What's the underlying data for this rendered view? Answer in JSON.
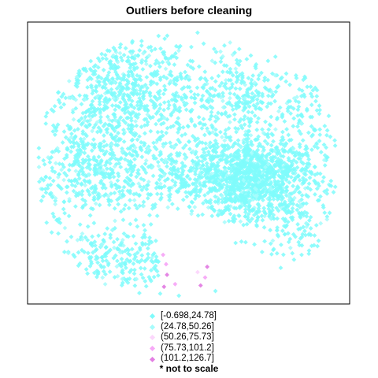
{
  "colors": {
    "background": "#ffffff",
    "frame": "#000000"
  },
  "chart_data": {
    "type": "scatter",
    "title": "Outliers before cleaning",
    "xlabel": "",
    "ylabel": "",
    "grid": false,
    "marker": "diamond",
    "legend_position": "bottom",
    "legend": {
      "note": "* not to scale",
      "entries": [
        {
          "label": "[-0.698,24.78]",
          "color": "#7ffbfb"
        },
        {
          "label": "(24.78,50.26]",
          "color": "#a6fcfc"
        },
        {
          "label": "(50.26,75.73]",
          "color": "#fcd6fc"
        },
        {
          "label": "(75.73,101.2]",
          "color": "#f7a8f7"
        },
        {
          "label": "(101.2,126.7]",
          "color": "#e37fe3"
        }
      ]
    },
    "clusters": [
      {
        "name": "upper-left mass",
        "center": [
          0.28,
          0.75
        ],
        "spread": [
          0.14,
          0.13
        ],
        "count": 900
      },
      {
        "name": "upper-right crescent",
        "center": [
          0.69,
          0.76
        ],
        "spread": [
          0.09,
          0.07
        ],
        "count": 260
      },
      {
        "name": "right-center dense core",
        "center": [
          0.71,
          0.44
        ],
        "spread": [
          0.1,
          0.08
        ],
        "count": 1100
      },
      {
        "name": "central band",
        "center": [
          0.5,
          0.47
        ],
        "spread": [
          0.2,
          0.08
        ],
        "count": 500
      },
      {
        "name": "left-middle band",
        "center": [
          0.17,
          0.45
        ],
        "spread": [
          0.12,
          0.09
        ],
        "count": 350
      },
      {
        "name": "lower-left arc",
        "center": [
          0.28,
          0.14
        ],
        "spread": [
          0.13,
          0.06
        ],
        "count": 300
      },
      {
        "name": "far-right fringe",
        "center": [
          0.9,
          0.62
        ],
        "spread": [
          0.05,
          0.15
        ],
        "count": 120
      },
      {
        "name": "lower-right fringe",
        "center": [
          0.86,
          0.27
        ],
        "spread": [
          0.07,
          0.07
        ],
        "count": 110
      }
    ],
    "outliers": [
      {
        "x": 0.415,
        "y": 0.155,
        "bin": 3
      },
      {
        "x": 0.425,
        "y": 0.12,
        "bin": 3
      },
      {
        "x": 0.428,
        "y": 0.08,
        "bin": 4
      },
      {
        "x": 0.418,
        "y": 0.035,
        "bin": 4
      },
      {
        "x": 0.455,
        "y": 0.045,
        "bin": 3
      },
      {
        "x": 0.54,
        "y": 0.04,
        "bin": 4
      },
      {
        "x": 0.555,
        "y": 0.07,
        "bin": 3
      },
      {
        "x": 0.562,
        "y": 0.11,
        "bin": 4
      },
      {
        "x": 0.53,
        "y": 0.09,
        "bin": 2
      }
    ]
  }
}
